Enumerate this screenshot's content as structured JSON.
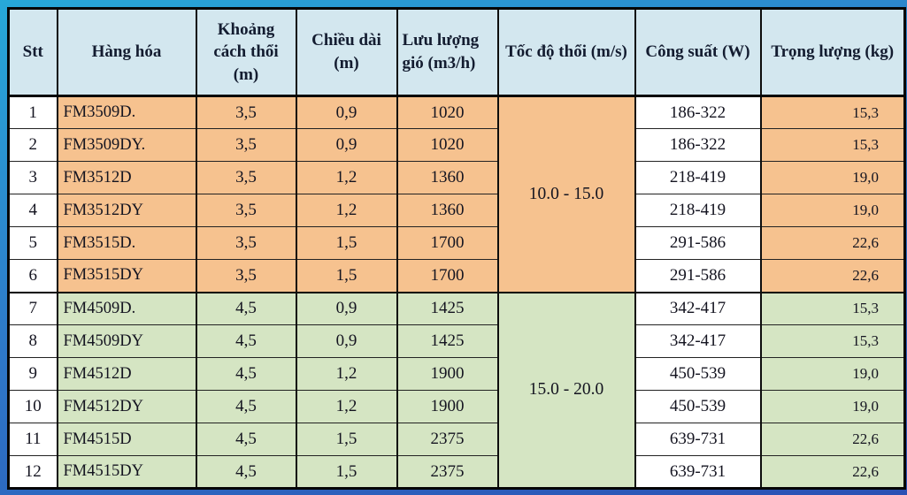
{
  "colors": {
    "frame_top": "#27a8d8",
    "frame_bottom": "#2a50b4",
    "header_bg": "#d3e7ef",
    "group1_bg": "#f6c28f",
    "group2_bg": "#d5e5c3",
    "cell_white": "#ffffff",
    "border": "#050505",
    "header_text": "#131c30",
    "cell_text": "#141420"
  },
  "table": {
    "headers": [
      "Stt",
      "Hàng hóa",
      "Khoảng cách thổi (m)",
      "Chiều dài (m)",
      "Lưu lượng gió (m3/h)",
      "Tốc độ thổi (m/s)",
      "Công suất (W)",
      "Trọng lượng (kg)"
    ],
    "groups": [
      {
        "speed_range": "10.0 - 15.0",
        "rows": [
          {
            "stt": "1",
            "product": "FM3509D.",
            "distance": "3,5",
            "length": "0,9",
            "airflow": "1020",
            "power": "186-322",
            "weight": "15,3"
          },
          {
            "stt": "2",
            "product": "FM3509DY.",
            "distance": "3,5",
            "length": "0,9",
            "airflow": "1020",
            "power": "186-322",
            "weight": "15,3"
          },
          {
            "stt": "3",
            "product": "FM3512D",
            "distance": "3,5",
            "length": "1,2",
            "airflow": "1360",
            "power": "218-419",
            "weight": "19,0"
          },
          {
            "stt": "4",
            "product": "FM3512DY",
            "distance": "3,5",
            "length": "1,2",
            "airflow": "1360",
            "power": "218-419",
            "weight": "19,0"
          },
          {
            "stt": "5",
            "product": "FM3515D.",
            "distance": "3,5",
            "length": "1,5",
            "airflow": "1700",
            "power": "291-586",
            "weight": "22,6"
          },
          {
            "stt": "6",
            "product": "FM3515DY",
            "distance": "3,5",
            "length": "1,5",
            "airflow": "1700",
            "power": "291-586",
            "weight": "22,6"
          }
        ]
      },
      {
        "speed_range": "15.0 - 20.0",
        "rows": [
          {
            "stt": "7",
            "product": "FM4509D.",
            "distance": "4,5",
            "length": "0,9",
            "airflow": "1425",
            "power": "342-417",
            "weight": "15,3"
          },
          {
            "stt": "8",
            "product": "FM4509DY",
            "distance": "4,5",
            "length": "0,9",
            "airflow": "1425",
            "power": "342-417",
            "weight": "15,3"
          },
          {
            "stt": "9",
            "product": "FM4512D",
            "distance": "4,5",
            "length": "1,2",
            "airflow": "1900",
            "power": "450-539",
            "weight": "19,0"
          },
          {
            "stt": "10",
            "product": "FM4512DY",
            "distance": "4,5",
            "length": "1,2",
            "airflow": "1900",
            "power": "450-539",
            "weight": "19,0"
          },
          {
            "stt": "11",
            "product": "FM4515D",
            "distance": "4,5",
            "length": "1,5",
            "airflow": "2375",
            "power": "639-731",
            "weight": "22,6"
          },
          {
            "stt": "12",
            "product": "FM4515DY",
            "distance": "4,5",
            "length": "1,5",
            "airflow": "2375",
            "power": "639-731",
            "weight": "22,6"
          }
        ]
      }
    ]
  }
}
